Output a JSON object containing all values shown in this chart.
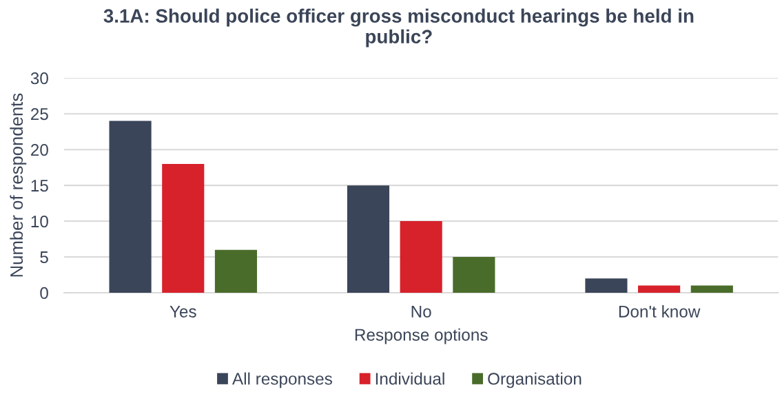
{
  "chart_data": {
    "type": "bar",
    "title": "3.1A: Should police officer gross misconduct hearings be held in public?",
    "xlabel": "Response options",
    "ylabel": "Number of respondents",
    "categories": [
      "Yes",
      "No",
      "Don't know"
    ],
    "series": [
      {
        "name": "All responses",
        "color": "#3b4559",
        "values": [
          24,
          15,
          2
        ]
      },
      {
        "name": "Individual",
        "color": "#d7212b",
        "values": [
          18,
          10,
          1
        ]
      },
      {
        "name": "Organisation",
        "color": "#4a6c2b",
        "values": [
          6,
          5,
          1
        ]
      }
    ],
    "ylim": [
      0,
      30
    ],
    "yticks": [
      0,
      5,
      10,
      15,
      20,
      25,
      30
    ],
    "grid": "y",
    "legend": "bottom"
  }
}
